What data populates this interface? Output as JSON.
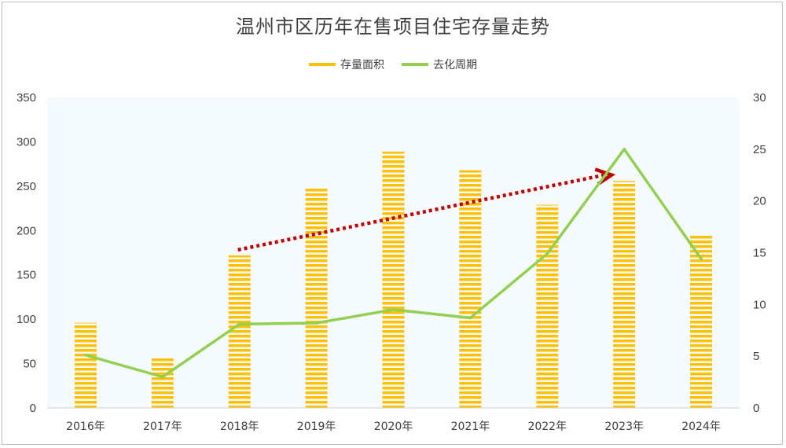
{
  "chart_data": {
    "type": "bar+line",
    "title": "温州市区历年在售项目住宅存量走势",
    "categories": [
      "2016年",
      "2017年",
      "2018年",
      "2019年",
      "2020年",
      "2021年",
      "2022年",
      "2023年",
      "2024年"
    ],
    "series": [
      {
        "name": "存量面积",
        "type": "bar",
        "axis": "left",
        "color": "#FFC000",
        "values": [
          96,
          56,
          172,
          249,
          289,
          268,
          229,
          256,
          196
        ]
      },
      {
        "name": "去化周期",
        "type": "line",
        "axis": "right",
        "color": "#92D050",
        "values": [
          5.1,
          3.0,
          8.1,
          8.2,
          9.5,
          8.7,
          14.9,
          25.0,
          14.4
        ]
      }
    ],
    "y_left": {
      "min": 0,
      "max": 350,
      "ticks": [
        0,
        50,
        100,
        150,
        200,
        250,
        300,
        350
      ]
    },
    "y_right": {
      "min": 0,
      "max": 30,
      "ticks": [
        0,
        5,
        10,
        15,
        20,
        25,
        30
      ]
    },
    "annotation": {
      "type": "dotted-arrow",
      "color": "#C00000",
      "from": {
        "category_index": 2,
        "left_value": 172
      },
      "to": {
        "category_index": 7,
        "left_value": 252
      }
    },
    "legend_position": "top",
    "plot_background": "#F5FAFF"
  }
}
